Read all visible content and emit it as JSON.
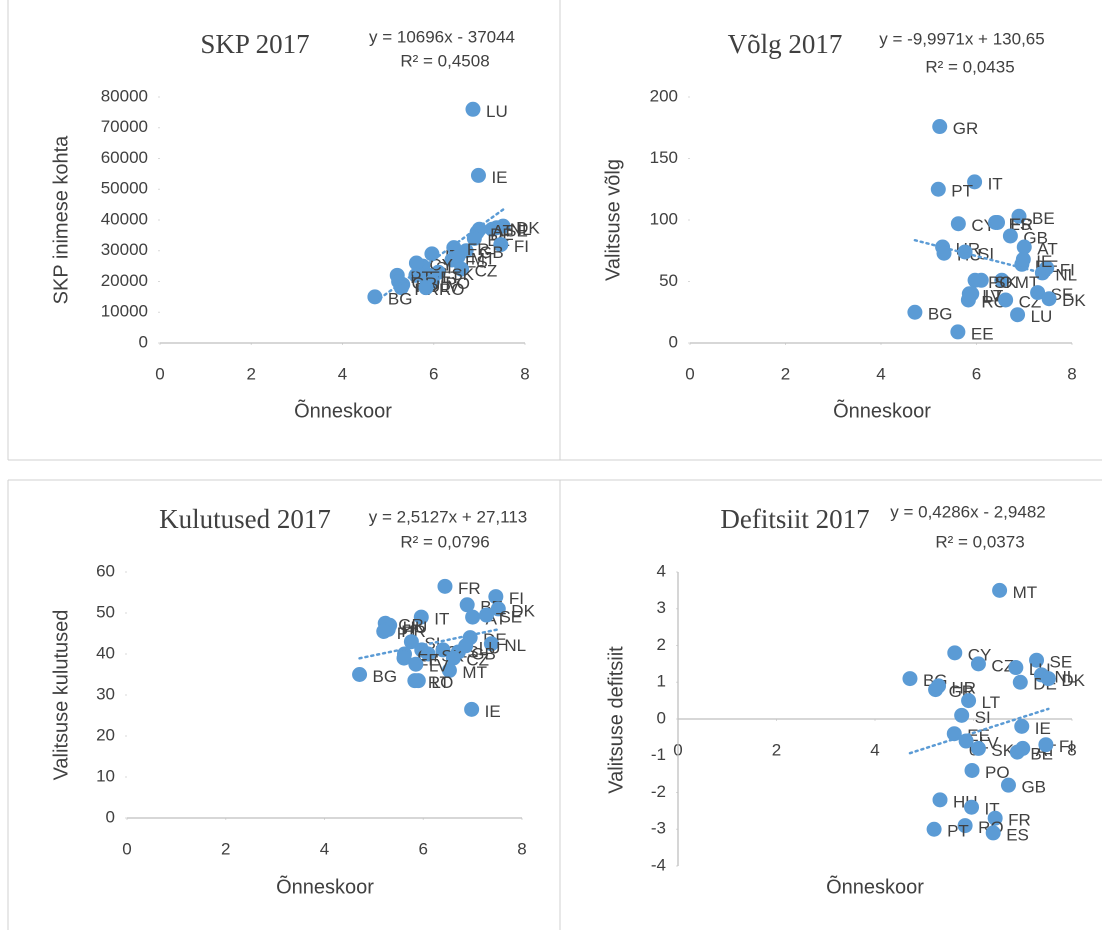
{
  "chart_data": [
    {
      "type": "scatter",
      "title": "SKP 2017",
      "x_label": "Õnneskoor",
      "y_label": "SKP inimese kohta",
      "trendline": {
        "label": "y = 10696x - 37044",
        "slope": 10696,
        "intercept": -37044
      },
      "r_squared": "R² = 0,4508",
      "xlim": [
        0,
        8
      ],
      "xticks": [
        0,
        2,
        4,
        6,
        8
      ],
      "ylim": [
        0,
        80000
      ],
      "yticks": [
        0,
        10000,
        20000,
        30000,
        40000,
        50000,
        60000,
        70000,
        80000
      ],
      "y_axis_line": false,
      "color": "#5b9bd5",
      "x": [
        6.86,
        6.98,
        7.52,
        7.38,
        7.28,
        7.0,
        6.95,
        6.89,
        7.47,
        6.71,
        6.44,
        5.96,
        6.4,
        6.53,
        6.61,
        5.76,
        6.1,
        5.62,
        5.9,
        5.61,
        5.2,
        5.97,
        5.32,
        5.85,
        5.23,
        5.29,
        5.83,
        4.71
      ],
      "values": [
        76000,
        54500,
        38000,
        37500,
        37000,
        37000,
        36000,
        34000,
        32000,
        30000,
        31000,
        29000,
        27000,
        28000,
        24000,
        25000,
        23000,
        26000,
        22000,
        22000,
        22000,
        20000,
        19000,
        19000,
        20000,
        18000,
        18000,
        15000
      ],
      "point_labels": [
        "LU",
        "IE",
        "DK",
        "NL",
        "SE",
        "AT",
        "DE",
        "BE",
        "FI",
        "GB",
        "FR",
        "IT",
        "ES",
        "MT",
        "CZ",
        "SI",
        "SK",
        "CY",
        "LT",
        "EE",
        "PT",
        "PO",
        "HU",
        "LV",
        "GR",
        "HR",
        "RO",
        "BG"
      ]
    },
    {
      "type": "scatter",
      "title": "Võlg 2017",
      "x_label": "Õnneskoor",
      "y_label": "Valitsuse võlg",
      "trendline": {
        "label": "y = -9,9971x + 130,65",
        "slope": -9.9971,
        "intercept": 130.65
      },
      "r_squared": "R² = 0,0435",
      "xlim": [
        0,
        8
      ],
      "xticks": [
        0,
        2,
        4,
        6,
        8
      ],
      "ylim": [
        0,
        200
      ],
      "yticks": [
        0,
        50,
        100,
        150,
        200
      ],
      "y_axis_line": false,
      "color": "#5b9bd5",
      "x": [
        5.23,
        5.96,
        5.2,
        6.89,
        5.62,
        6.4,
        6.44,
        6.71,
        7.0,
        5.29,
        5.32,
        5.76,
        6.95,
        7.47,
        7.38,
        6.98,
        6.53,
        5.97,
        6.1,
        5.85,
        5.9,
        5.83,
        6.61,
        7.28,
        7.52,
        6.86,
        4.71,
        5.61
      ],
      "values": [
        176,
        131,
        125,
        103,
        97,
        98,
        98,
        87,
        78,
        78,
        73,
        74,
        64,
        61,
        57,
        68,
        51,
        51,
        51,
        40,
        40,
        35,
        35,
        41,
        36,
        23,
        25,
        9
      ],
      "point_labels": [
        "GR",
        "IT",
        "PT",
        "BE",
        "CY",
        "ES",
        "FR",
        "GB",
        "AT",
        "HR",
        "HU",
        "SI",
        "DE",
        "FI",
        "NL",
        "IE",
        "MT",
        "PO",
        "SK",
        "LV",
        "LT",
        "RO",
        "CZ",
        "SE",
        "DK",
        "LU",
        "BG",
        "EE"
      ]
    },
    {
      "type": "scatter",
      "title": "Kulutused 2017",
      "x_label": "Õnneskoor",
      "y_label": "Valitsuse kulutused",
      "trendline": {
        "label": "y = 2,5127x + 27,113",
        "slope": 2.5127,
        "intercept": 27.113
      },
      "r_squared": "R² = 0,0796",
      "xlim": [
        0,
        8
      ],
      "xticks": [
        0,
        2,
        4,
        6,
        8
      ],
      "ylim": [
        0,
        60
      ],
      "yticks": [
        0,
        10,
        20,
        30,
        40,
        50,
        60
      ],
      "y_axis_line": false,
      "color": "#5b9bd5",
      "x": [
        6.44,
        7.47,
        6.89,
        7.52,
        7.0,
        7.28,
        5.96,
        5.32,
        5.23,
        5.29,
        5.2,
        6.95,
        7.38,
        5.76,
        5.97,
        5.62,
        6.4,
        6.71,
        6.1,
        6.61,
        6.53,
        5.61,
        5.85,
        5.83,
        5.9,
        6.86,
        4.71,
        6.98
      ],
      "values": [
        56.5,
        54,
        52,
        51,
        49,
        49.5,
        49,
        47,
        47.5,
        46,
        45.5,
        44,
        42.5,
        43,
        41,
        40,
        41,
        40.5,
        40,
        39,
        36,
        39,
        37.5,
        33.5,
        33.5,
        42,
        35,
        26.5
      ],
      "point_labels": [
        "FR",
        "FI",
        "BE",
        "DK",
        "AT",
        "SE",
        "IT",
        "HU",
        "GR",
        "HR",
        "PT",
        "DE",
        "NL",
        "SI",
        "PO",
        "CY",
        "ES",
        "GB",
        "SK",
        "CZ",
        "MT",
        "EE",
        "LV",
        "RO",
        "LT",
        "LU",
        "BG",
        "IE"
      ]
    },
    {
      "type": "scatter",
      "title": "Defitsiit 2017",
      "x_label": "Õnneskoor",
      "y_label": "Valitsuse defitsiit",
      "trendline": {
        "label": "y = 0,4286x - 2,9482",
        "slope": 0.4286,
        "intercept": -2.9482
      },
      "r_squared": "R² = 0,0373",
      "xlim": [
        0,
        8
      ],
      "xticks": [
        0,
        2,
        4,
        6,
        8
      ],
      "ylim": [
        -4,
        4
      ],
      "yticks": [
        -4,
        -3,
        -2,
        -1,
        0,
        1,
        2,
        3,
        4
      ],
      "y_axis_line": true,
      "color": "#5b9bd5",
      "x": [
        6.53,
        5.62,
        7.28,
        6.1,
        6.86,
        7.38,
        6.95,
        7.52,
        4.71,
        5.23,
        5.29,
        5.9,
        5.76,
        6.98,
        5.61,
        5.85,
        6.1,
        6.89,
        7.0,
        7.47,
        5.97,
        6.71,
        5.32,
        5.96,
        6.44,
        5.83,
        5.2,
        6.4
      ],
      "values": [
        3.5,
        1.8,
        1.6,
        1.5,
        1.4,
        1.2,
        1.0,
        1.1,
        1.1,
        0.8,
        0.9,
        0.5,
        0.1,
        -0.2,
        -0.4,
        -0.6,
        -0.8,
        -0.9,
        -0.8,
        -0.7,
        -1.4,
        -1.8,
        -2.2,
        -2.4,
        -2.7,
        -2.9,
        -3.0,
        -3.1
      ],
      "point_labels": [
        "MT",
        "CY",
        "SE",
        "CZ",
        "LU",
        "NL",
        "DE",
        "DK",
        "BG",
        "GR",
        "HR",
        "LT",
        "SI",
        "IE",
        "EE",
        "LV",
        "SK",
        "BE",
        "AT",
        "FI",
        "PO",
        "GB",
        "HU",
        "IT",
        "FR",
        "RO",
        "PT",
        "ES"
      ]
    }
  ]
}
